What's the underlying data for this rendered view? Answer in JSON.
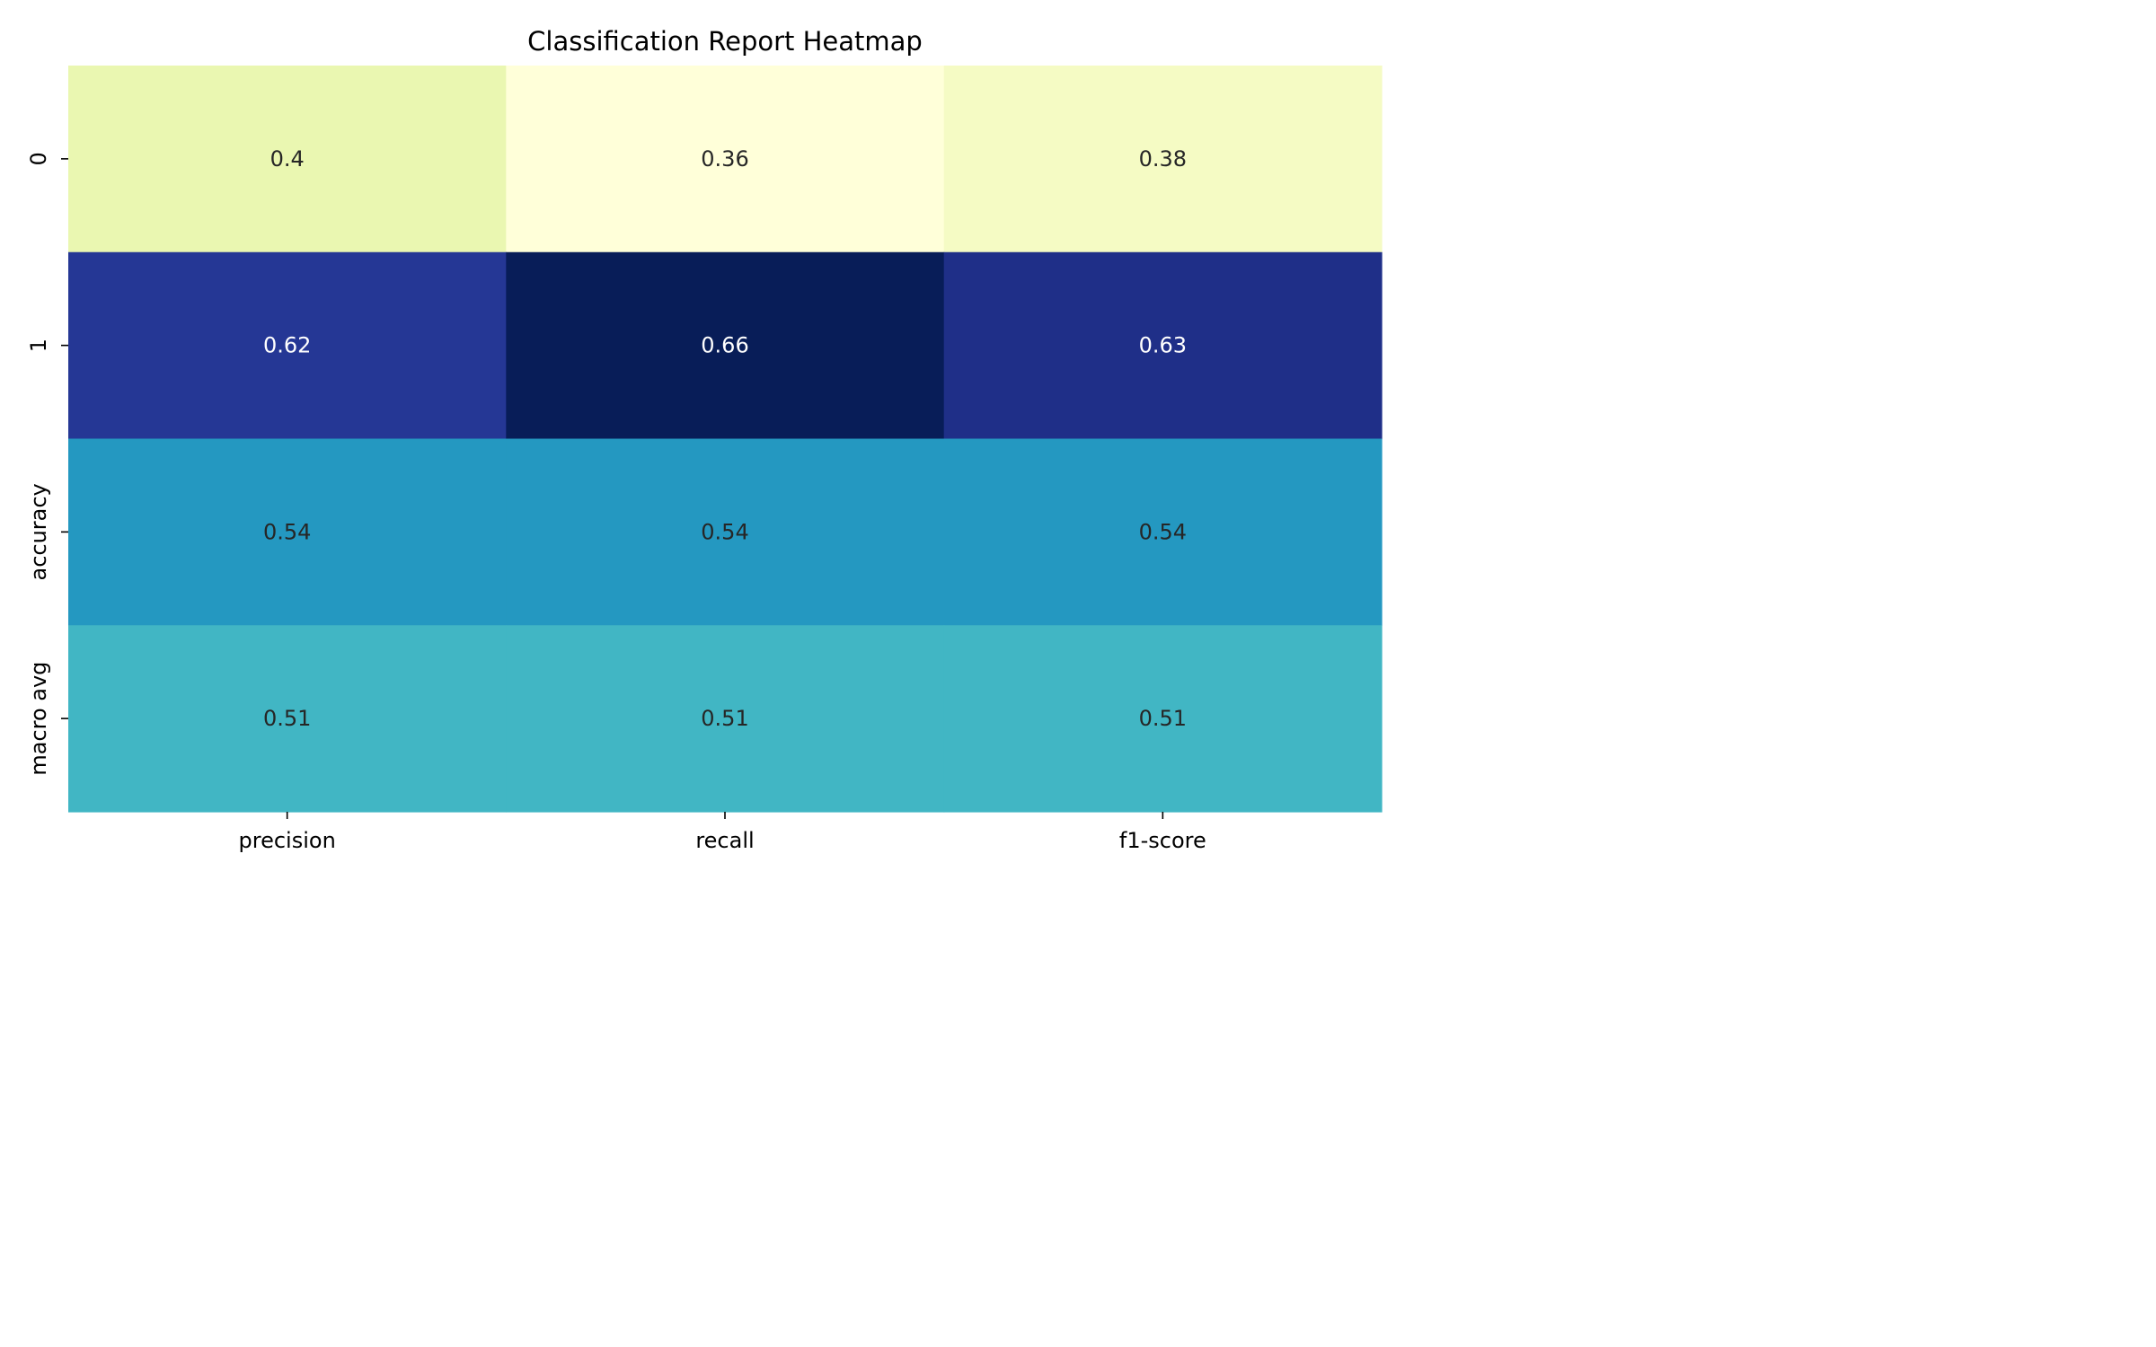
{
  "chart_data": {
    "type": "heatmap",
    "title": "Classification Report Heatmap",
    "xlabel": "",
    "ylabel": "",
    "x_categories": [
      "precision",
      "recall",
      "f1-score"
    ],
    "y_categories": [
      "0",
      "1",
      "accuracy",
      "macro avg"
    ],
    "values": [
      [
        0.4,
        0.36,
        0.38
      ],
      [
        0.62,
        0.66,
        0.63
      ],
      [
        0.54,
        0.54,
        0.54
      ],
      [
        0.51,
        0.51,
        0.51
      ]
    ],
    "annotations": [
      [
        "0.4",
        "0.36",
        "0.38"
      ],
      [
        "0.62",
        "0.66",
        "0.63"
      ],
      [
        "0.54",
        "0.54",
        "0.54"
      ],
      [
        "0.51",
        "0.51",
        "0.51"
      ]
    ],
    "colormap": "YlGnBu",
    "colorbar": false,
    "value_range": [
      0.36,
      0.66
    ],
    "text_colors": {
      "light_bg": "#262626",
      "dark_bg": "#ffffff"
    }
  }
}
